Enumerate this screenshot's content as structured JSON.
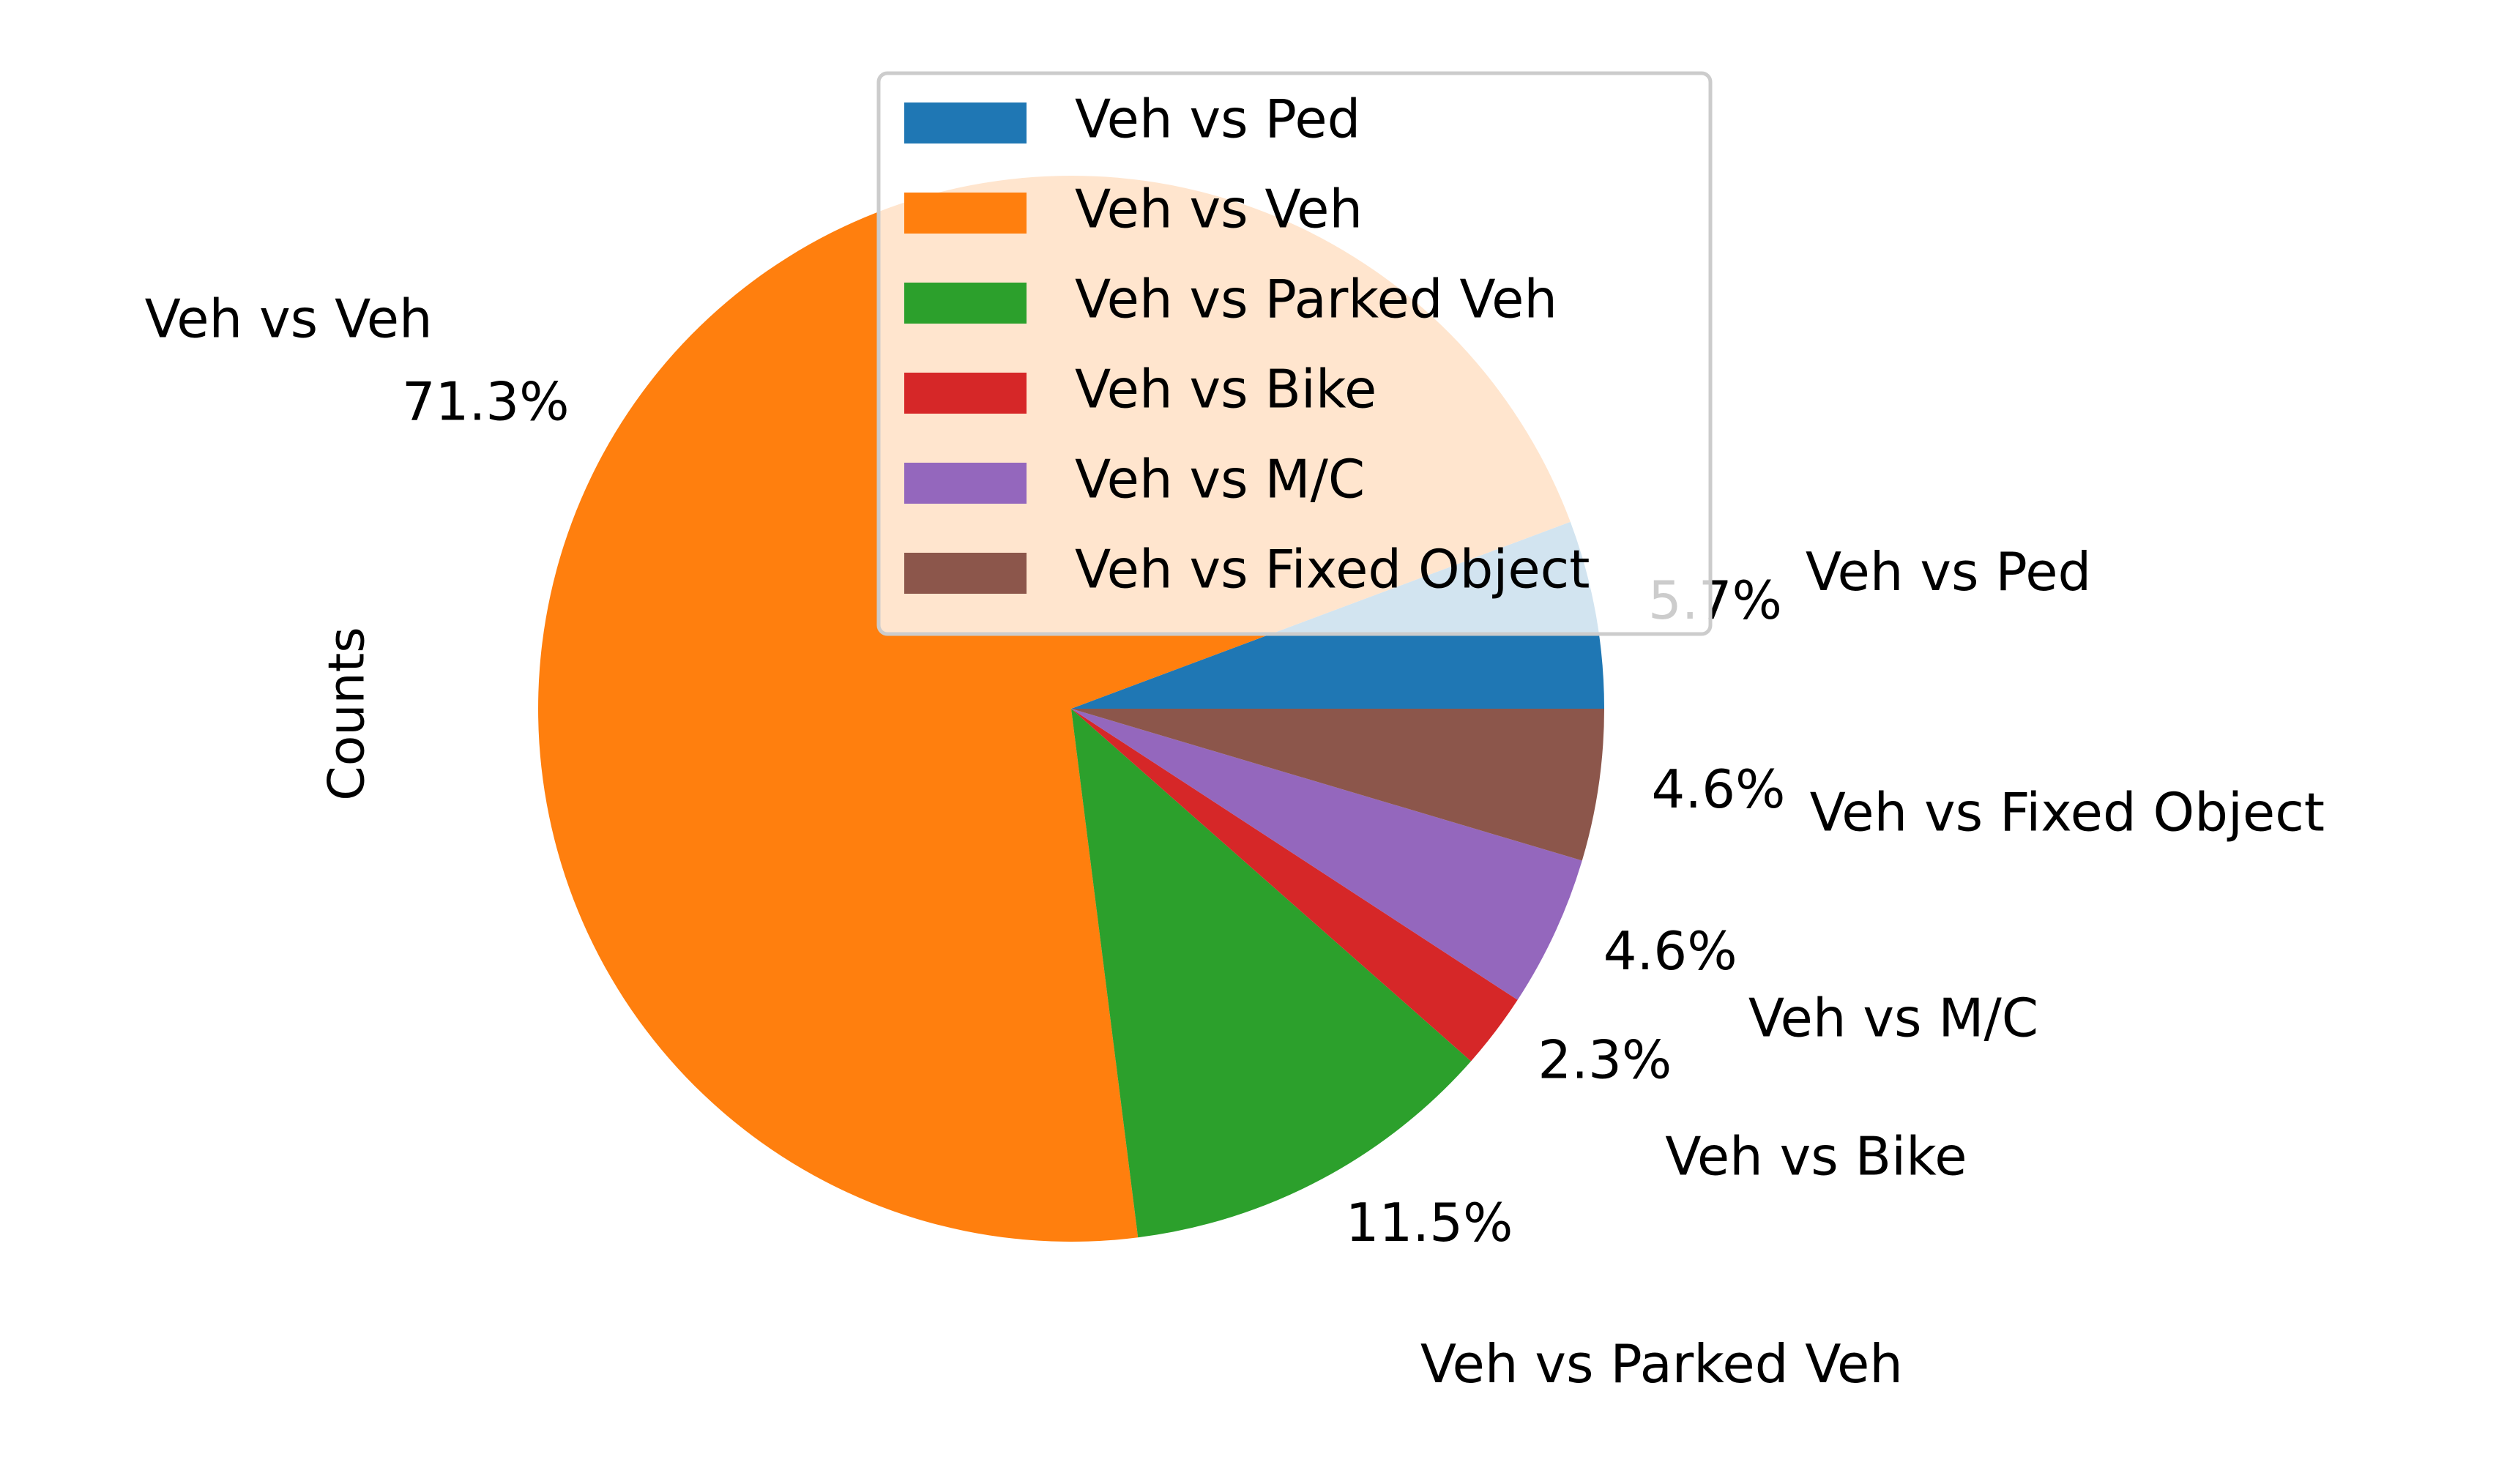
{
  "chart_data": {
    "type": "pie",
    "ylabel": "Counts",
    "legend_position": "top-center",
    "start_angle_deg": 0,
    "direction": "counterclockwise",
    "slices": [
      {
        "label": "Veh vs Ped",
        "value": 5.7,
        "pct_label": "5.7%",
        "color": "#1f77b4"
      },
      {
        "label": "Veh vs Veh",
        "value": 71.3,
        "pct_label": "71.3%",
        "color": "#ff7f0e"
      },
      {
        "label": "Veh vs Parked Veh",
        "value": 11.5,
        "pct_label": "11.5%",
        "color": "#2ca02c"
      },
      {
        "label": "Veh vs Bike",
        "value": 2.3,
        "pct_label": "2.3%",
        "color": "#d62728"
      },
      {
        "label": "Veh vs M/C",
        "value": 4.6,
        "pct_label": "4.6%",
        "color": "#9467bd"
      },
      {
        "label": "Veh vs Fixed Object",
        "value": 4.6,
        "pct_label": "4.6%",
        "color": "#8c564b"
      }
    ]
  }
}
